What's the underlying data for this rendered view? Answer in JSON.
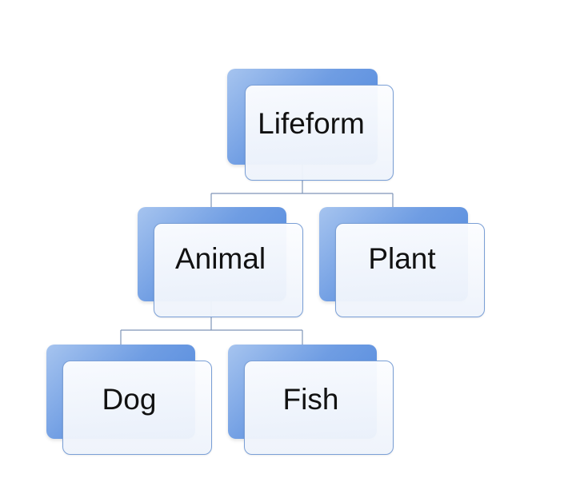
{
  "diagram": {
    "type": "hierarchy",
    "nodes": {
      "lifeform": {
        "label": "Lifeform"
      },
      "animal": {
        "label": "Animal"
      },
      "plant": {
        "label": "Plant"
      },
      "dog": {
        "label": "Dog"
      },
      "fish": {
        "label": "Fish"
      }
    },
    "edges": [
      {
        "from": "lifeform",
        "to": "animal"
      },
      {
        "from": "lifeform",
        "to": "plant"
      },
      {
        "from": "animal",
        "to": "dog"
      },
      {
        "from": "animal",
        "to": "fish"
      }
    ],
    "colors": {
      "accent_blue": "#4e86dc",
      "light_blue": "#a6c4ef",
      "box_fill": "#eef3fb",
      "box_border": "#7a9fd6",
      "connector": "#7f95b8",
      "text": "#111111"
    }
  }
}
